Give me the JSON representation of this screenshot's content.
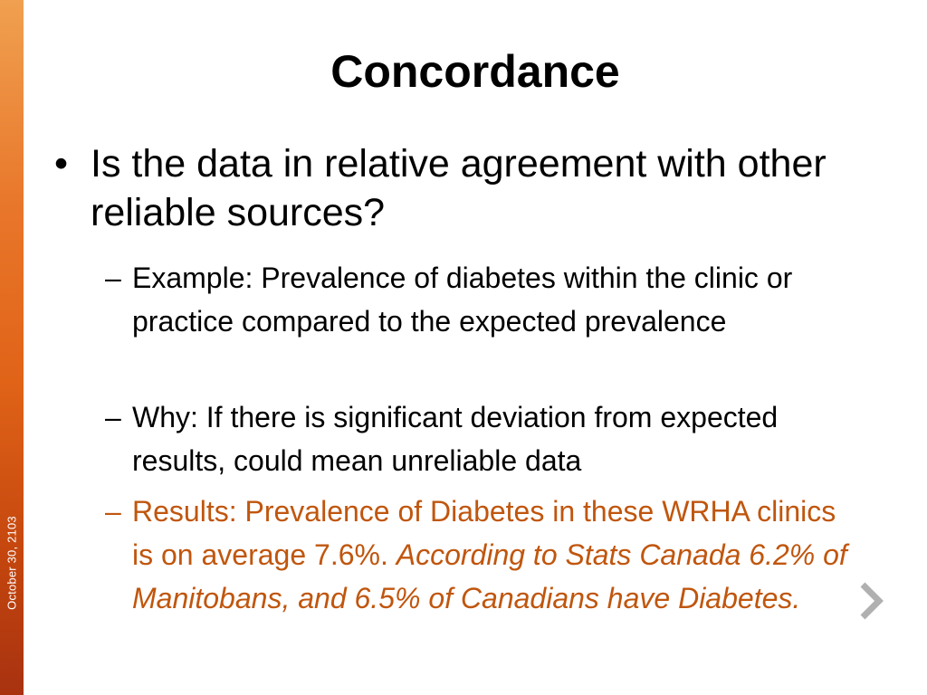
{
  "side": {
    "date": "October 30, 2103"
  },
  "slide": {
    "title": "Concordance",
    "bullet_mark": "•",
    "bullet": "Is the data in relative agreement with other reliable sources?",
    "dash": "–",
    "sub_items": [
      {
        "text": "Example: Prevalence of diabetes within the clinic or practice compared to the expected prevalence"
      },
      {
        "text": "Why: If there is significant deviation from expected results, could mean unreliable data"
      },
      {
        "text": "Results: Prevalence of Diabetes in these WRHA clinics is on average 7.6%. ",
        "italic": "According to Stats Canada 6.2% of Manitobans, and 6.5% of Canadians have Diabetes."
      }
    ]
  },
  "nav": {
    "next_icon": "chevron-right-icon"
  },
  "colors": {
    "accent": "#c0560e",
    "band_top": "#f0a050",
    "band_bottom": "#a83210",
    "arrow": "#b0b0b0"
  }
}
